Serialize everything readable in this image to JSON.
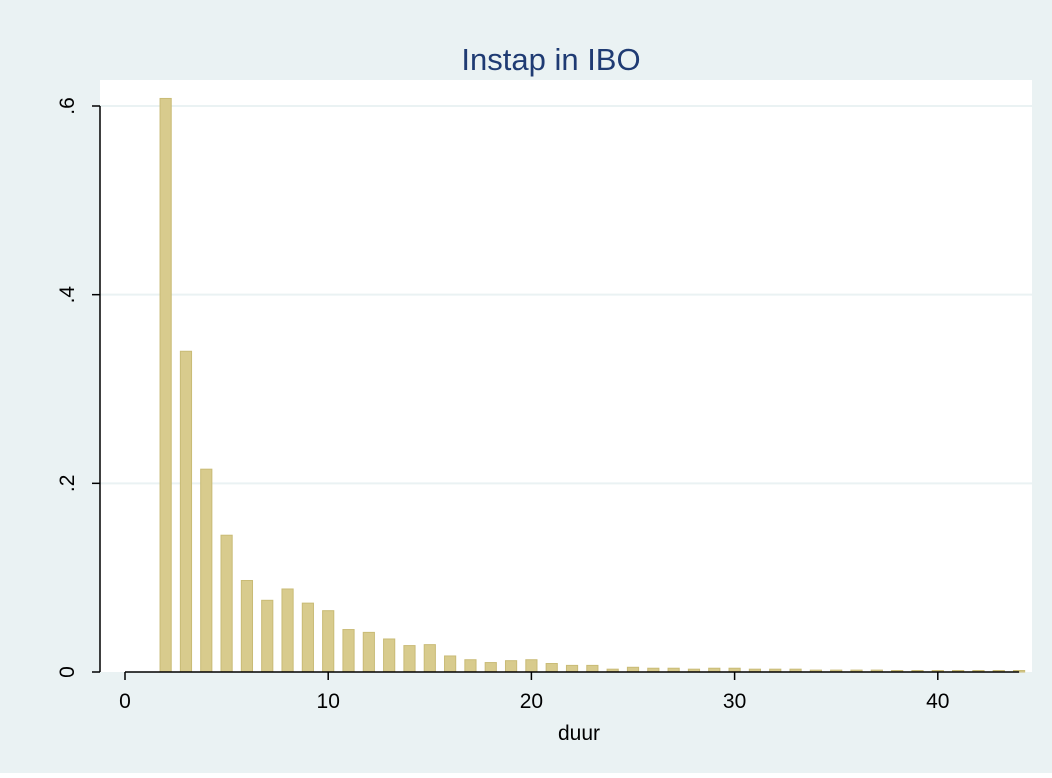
{
  "chart_data": {
    "type": "bar",
    "title": "Instap in IBO",
    "xlabel": "duur",
    "ylabel": "",
    "xlim": [
      -1.5,
      44.5
    ],
    "ylim": [
      0,
      0.6
    ],
    "x_ticks": [
      {
        "value": 0,
        "label": "0"
      },
      {
        "value": 10,
        "label": "10"
      },
      {
        "value": 20,
        "label": "20"
      },
      {
        "value": 30,
        "label": "30"
      },
      {
        "value": 40,
        "label": "40"
      }
    ],
    "y_ticks": [
      {
        "value": 0,
        "label": "0"
      },
      {
        "value": 0.2,
        "label": ".2"
      },
      {
        "value": 0.4,
        "label": ".4"
      },
      {
        "value": 0.6,
        "label": ".6"
      }
    ],
    "grid": true,
    "legend": "none",
    "bar_width": 0.55,
    "x": [
      2,
      3,
      4,
      5,
      6,
      7,
      8,
      9,
      10,
      11,
      12,
      13,
      14,
      15,
      16,
      17,
      18,
      19,
      20,
      21,
      22,
      23,
      24,
      25,
      26,
      27,
      28,
      29,
      30,
      31,
      32,
      33,
      34,
      35,
      36,
      37,
      38,
      39,
      40,
      41,
      42,
      43,
      44
    ],
    "values": [
      0.608,
      0.34,
      0.215,
      0.145,
      0.097,
      0.076,
      0.088,
      0.073,
      0.065,
      0.045,
      0.042,
      0.035,
      0.028,
      0.029,
      0.017,
      0.013,
      0.01,
      0.012,
      0.013,
      0.009,
      0.007,
      0.007,
      0.003,
      0.005,
      0.004,
      0.004,
      0.003,
      0.004,
      0.004,
      0.003,
      0.003,
      0.003,
      0.002,
      0.002,
      0.002,
      0.002,
      0.0015,
      0.0015,
      0.0015,
      0.001,
      0.001,
      0.001,
      0.001
    ],
    "colors": {
      "outer_background": "#eaf2f3",
      "plot_background": "#ffffff",
      "grid": "#eaf2f3",
      "bar_fill": "#d8cb8d",
      "bar_stroke": "#c9bb76",
      "title": "#1f3b73",
      "text": "#000000"
    }
  }
}
